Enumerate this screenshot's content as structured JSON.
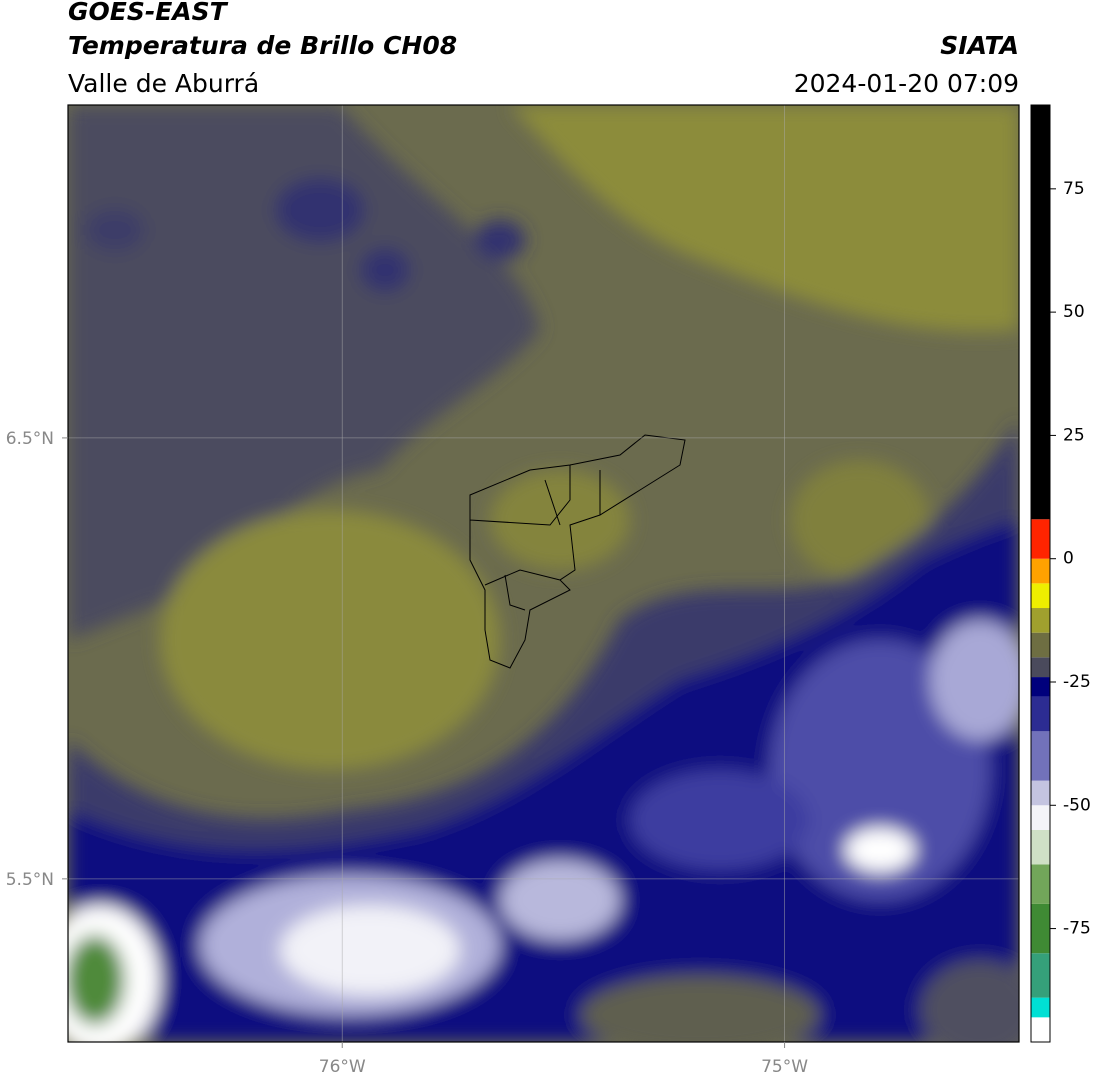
{
  "header": {
    "title": "GOES-EAST",
    "subtitle": "Temperatura de Brillo CH08",
    "source": "SIATA",
    "region": "Valle de Aburrá",
    "datetime": "2024-01-20 07:09"
  },
  "map": {
    "xlim": [
      -76.62,
      -74.47
    ],
    "ylim": [
      5.13,
      7.255
    ],
    "xticks": [
      {
        "value": -76,
        "label": "76°W"
      },
      {
        "value": -75,
        "label": "75°W"
      }
    ],
    "yticks": [
      {
        "value": 5.5,
        "label": "5.5°N"
      },
      {
        "value": 6.5,
        "label": "6.5°N"
      }
    ],
    "grid": true,
    "colorbar": {
      "ticks": [
        -75,
        -50,
        -25,
        0,
        25,
        50,
        75
      ],
      "bounds": [
        -98,
        -93,
        -89,
        -80,
        -70,
        -62,
        -55,
        -50,
        -45,
        -35,
        -28,
        -24,
        -20,
        -15,
        -10,
        -5,
        0,
        8,
        92
      ],
      "colors": [
        "#ffffff",
        "#00e0d4",
        "#35a07a",
        "#3f8a34",
        "#72a65a",
        "#cfe0c6",
        "#f4f4f8",
        "#c4c4e0",
        "#7272ba",
        "#2c2c92",
        "#00007c",
        "#4a4a5c",
        "#6e6e42",
        "#a0a02e",
        "#eeee00",
        "#ffa200",
        "#ff2400",
        "#000000"
      ]
    }
  }
}
